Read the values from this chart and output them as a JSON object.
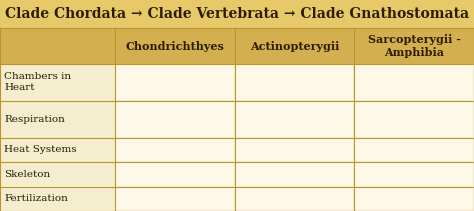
{
  "title": "Clade Chordata → Clade Vertebrata → Clade Gnathostomata",
  "title_color": "#2b1d00",
  "title_bg": "#e8c96a",
  "header_bg": "#d4af50",
  "header_text_color": "#2b1d00",
  "row_label_bg": "#f5edd0",
  "cell_bg": "#fdf8e8",
  "border_color": "#b8962a",
  "columns": [
    "Chondrichthyes",
    "Actinopterygii",
    "Sarcopterygii -\nAmphibia"
  ],
  "rows": [
    "Chambers in\nHeart",
    "Respiration",
    "Heat Systems",
    "Skeleton",
    "Fertilization"
  ],
  "fig_width": 4.74,
  "fig_height": 2.11,
  "dpi": 100
}
